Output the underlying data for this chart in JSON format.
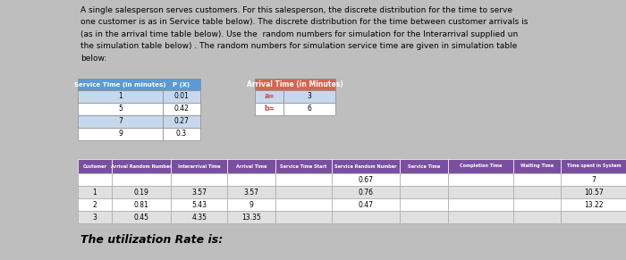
{
  "title_text": "A single salesperson serves customers. For this salesperson, the discrete distribution for the time to serve\none customer is as in Service table below). The discrete distribution for the time between customer arrivals is\n(as in the arrival time table below). Use the  random numbers for simulation for the Interarrival supplied un\nthe simulation table below) . The random numbers for simulation service time are given in simulation table\nbelow:",
  "service_table": {
    "header": [
      "Service Time (in minutes)",
      "P (X)"
    ],
    "rows": [
      [
        "1",
        "0.01"
      ],
      [
        "5",
        "0.42"
      ],
      [
        "7",
        "0.27"
      ],
      [
        "9",
        "0.3"
      ]
    ],
    "header_color": "#5B9BD5",
    "row_color": "#FFFFFF",
    "alt_row_color": "#C8D8EC"
  },
  "arrival_table": {
    "header": [
      "Arrival Time (in Minutes)"
    ],
    "rows": [
      [
        "a=",
        "3"
      ],
      [
        "b=",
        "6"
      ]
    ],
    "header_color": "#D9634E",
    "label_color": "#C0504D",
    "row_color": "#FFFFFF",
    "alt_row_color": "#C8D8EC"
  },
  "sim_table": {
    "header": [
      "Customer",
      "Arrival Random Number",
      "Interarrival Time",
      "Arrival Time",
      "Service Time Start",
      "Service Random Number",
      "Service Time",
      "Completion Time",
      "Waiting Time",
      "Time spent in System"
    ],
    "header_color": "#7B4FA0",
    "rows": [
      [
        "",
        "",
        "",
        "",
        "",
        "0.67",
        "",
        "",
        "",
        "7"
      ],
      [
        "1",
        "0.19",
        "3.57",
        "3.57",
        "",
        "0.76",
        "",
        "",
        "",
        "10.57"
      ],
      [
        "2",
        "0.81",
        "5.43",
        "9",
        "",
        "0.47",
        "",
        "",
        "",
        "13.22"
      ],
      [
        "3",
        "0.45",
        "4.35",
        "13.35",
        "",
        "",
        "",
        "",
        "",
        ""
      ]
    ],
    "row_color": "#FFFFFF",
    "alt_row_color": "#E0E0E0"
  },
  "footer_text": "The utilization Rate is:",
  "bg_color": "#BEBEBE",
  "text_color": "#000000",
  "title_fontsize": 6.5,
  "footer_fontsize": 9
}
